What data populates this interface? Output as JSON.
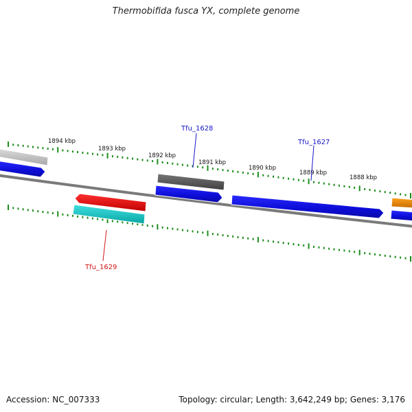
{
  "title": "Thermobifida fusca YX, complete genome",
  "accession": "Accession: NC_007333",
  "summary": "Topology: circular; Length: 3,642,249 bp; Genes: 3,176",
  "colors": {
    "backbone": "#7a7a7a",
    "ticks": "#1a8c1a",
    "forward_blue": "#1414e6",
    "gray_gene": "#555555",
    "light_gray_gene": "#bdbdbd",
    "red_gene": "#e61414",
    "cyan_gene": "#14c8c8",
    "orange_gene": "#e68a00",
    "label_blue": "#1414c8",
    "label_red": "#d21414"
  },
  "scale_labels": [
    "1894 kbp",
    "1893 kbp",
    "1892 kbp",
    "1891 kbp",
    "1890 kbp",
    "1889 kbp",
    "1888 kbp"
  ],
  "gene_labels": [
    {
      "id": "Tfu_1628",
      "color": "label_blue"
    },
    {
      "id": "Tfu_1627",
      "color": "label_blue"
    },
    {
      "id": "Tfu_1629",
      "color": "label_red"
    }
  ]
}
